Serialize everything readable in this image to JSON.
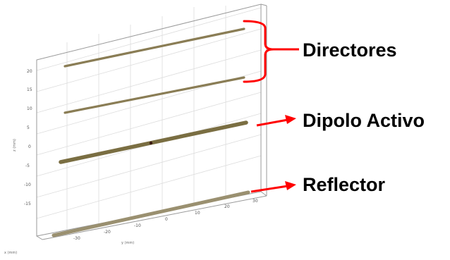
{
  "labels": {
    "directors": "Directores",
    "active_dipole": "Dipolo Activo",
    "reflector": "Reflector"
  },
  "axes": {
    "z_label": "z (mm)",
    "x_label": "x (mm)",
    "y_label": "y (mm)",
    "z_ticks": [
      "20",
      "15",
      "10",
      "5",
      "0",
      "-5",
      "-10",
      "-15"
    ],
    "y_ticks": [
      "-30",
      "-20",
      "-10",
      "0",
      "10",
      "20",
      "30"
    ]
  },
  "elements": [
    {
      "name": "director-2",
      "role": "director",
      "color": "#8a7d55"
    },
    {
      "name": "director-1",
      "role": "director",
      "color": "#8a7d55"
    },
    {
      "name": "active-dipole",
      "role": "active",
      "color": "#7a6e42",
      "feed_color": "#3a1a10"
    },
    {
      "name": "reflector",
      "role": "reflector",
      "color": "#9a9070"
    }
  ],
  "colors": {
    "annotation": "#ff0000",
    "frame": "#9a9a9a",
    "grid": "#d9d9d9"
  }
}
